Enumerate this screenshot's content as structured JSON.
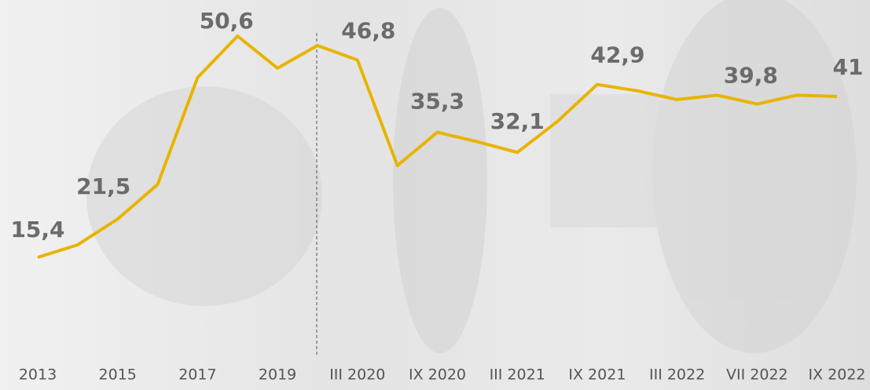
{
  "chart_data": {
    "type": "line",
    "categories": [
      "2013",
      null,
      "2015",
      null,
      "2017",
      null,
      "2019",
      null,
      "III 2020",
      null,
      "IX 2020",
      null,
      "III 2021",
      null,
      "IX  2021",
      null,
      "III 2022",
      null,
      "VII 2022",
      null,
      "IX 2022"
    ],
    "series": [
      {
        "color": "#e8b400",
        "values": [
          15.4,
          17.4,
          21.5,
          27.0,
          44.0,
          50.6,
          45.5,
          49.1,
          46.8,
          30.0,
          35.3,
          33.8,
          32.1,
          37.0,
          42.9,
          41.9,
          40.5,
          41.2,
          39.8,
          41.2,
          41
        ],
        "value_labels": [
          "15,4",
          null,
          "21,5",
          null,
          null,
          "50,6",
          null,
          null,
          "46,8",
          null,
          "35,3",
          null,
          "32,1",
          null,
          "42,9",
          null,
          null,
          null,
          "39,8",
          null,
          "41"
        ]
      }
    ]
  }
}
